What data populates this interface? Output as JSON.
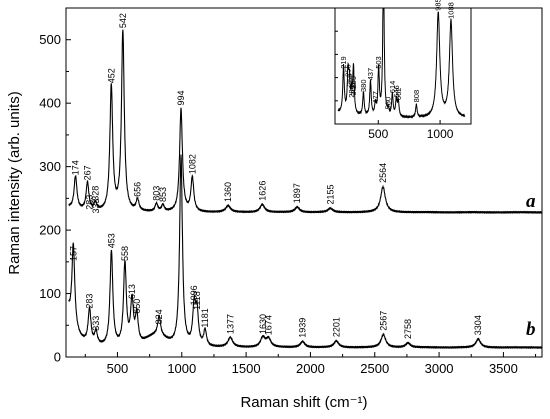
{
  "chart_data": {
    "type": "line",
    "xlabel": "Raman shift (cm⁻¹)",
    "ylabel": "Raman intensity (arb. units)",
    "xlim": [
      100,
      3800
    ],
    "ylim": [
      0,
      550
    ],
    "x_ticks": [
      500,
      1000,
      1500,
      2000,
      2500,
      3000,
      3500
    ],
    "y_ticks": [
      0,
      100,
      200,
      300,
      400,
      500
    ],
    "grid": false,
    "series": [
      {
        "name": "a",
        "baseline": 228,
        "peaks": [
          {
            "x": 174,
            "y": 280,
            "label": "174"
          },
          {
            "x": 267,
            "y": 272,
            "label": "267"
          },
          {
            "x": 328,
            "y": 240,
            "label": "328"
          },
          {
            "x": 452,
            "y": 425,
            "label": "452"
          },
          {
            "x": 542,
            "y": 512,
            "label": "542"
          },
          {
            "x": 656,
            "y": 246,
            "label": "656"
          },
          {
            "x": 803,
            "y": 240,
            "label": "803"
          },
          {
            "x": 853,
            "y": 238,
            "label": "853"
          },
          {
            "x": 994,
            "y": 390,
            "label": "994"
          },
          {
            "x": 1082,
            "y": 282,
            "label": "1082"
          },
          {
            "x": 1360,
            "y": 238,
            "label": "1360"
          },
          {
            "x": 1626,
            "y": 240,
            "label": "1626"
          },
          {
            "x": 1897,
            "y": 236,
            "label": "1897"
          },
          {
            "x": 2155,
            "y": 234,
            "label": "2155"
          },
          {
            "x": 2564,
            "y": 268,
            "label": "2564"
          }
        ]
      },
      {
        "name": "b",
        "baseline": 15,
        "peaks": [
          {
            "x": 157,
            "y": 145,
            "label": "157"
          },
          {
            "x": 283,
            "y": 70,
            "label": "283"
          },
          {
            "x": 333,
            "y": 35,
            "label": "333"
          },
          {
            "x": 453,
            "y": 165,
            "label": "453"
          },
          {
            "x": 558,
            "y": 145,
            "label": "558"
          },
          {
            "x": 613,
            "y": 85,
            "label": "613"
          },
          {
            "x": 650,
            "y": 62,
            "label": "650"
          },
          {
            "x": 824,
            "y": 45,
            "label": "824"
          },
          {
            "x": 994,
            "y": 315,
            "label": ""
          },
          {
            "x": 1096,
            "y": 75,
            "label": "1096"
          },
          {
            "x": 1118,
            "y": 68,
            "label": "1118"
          },
          {
            "x": 1181,
            "y": 40,
            "label": "1181"
          },
          {
            "x": 1377,
            "y": 30,
            "label": "1377"
          },
          {
            "x": 1630,
            "y": 30,
            "label": "1630"
          },
          {
            "x": 1674,
            "y": 28,
            "label": "1674"
          },
          {
            "x": 1939,
            "y": 24,
            "label": "1939"
          },
          {
            "x": 2201,
            "y": 25,
            "label": "2201"
          },
          {
            "x": 2567,
            "y": 35,
            "label": "2567"
          },
          {
            "x": 2758,
            "y": 22,
            "label": "2758"
          },
          {
            "x": 3304,
            "y": 28,
            "label": "3304"
          }
        ]
      }
    ],
    "annotations": [
      "283",
      "333"
    ],
    "inset": {
      "type": "line",
      "xlim": [
        150,
        1250
      ],
      "x_ticks": [
        500,
        1000
      ],
      "baseline": 0.05,
      "peaks": [
        {
          "x": 219,
          "y": 0.45,
          "label": "219"
        },
        {
          "x": 255,
          "y": 0.38,
          "label": "255"
        },
        {
          "x": 266,
          "y": 0.3,
          "label": "266"
        },
        {
          "x": 284,
          "y": 0.2,
          "label": "284"
        },
        {
          "x": 299,
          "y": 0.28,
          "label": "299"
        },
        {
          "x": 300,
          "y": 0.22,
          "label": "300"
        },
        {
          "x": 380,
          "y": 0.25,
          "label": "380"
        },
        {
          "x": 437,
          "y": 0.35,
          "label": "437"
        },
        {
          "x": 477,
          "y": 0.15,
          "label": "477"
        },
        {
          "x": 503,
          "y": 0.45,
          "label": "503"
        },
        {
          "x": 542,
          "y": 1.3,
          "label": ""
        },
        {
          "x": 580,
          "y": 0.1,
          "label": "580"
        },
        {
          "x": 614,
          "y": 0.24,
          "label": "614"
        },
        {
          "x": 646,
          "y": 0.2,
          "label": "646"
        },
        {
          "x": 662,
          "y": 0.18,
          "label": "662"
        },
        {
          "x": 808,
          "y": 0.16,
          "label": "808"
        },
        {
          "x": 985,
          "y": 0.95,
          "label": "985"
        },
        {
          "x": 1088,
          "y": 0.88,
          "label": "1088"
        }
      ]
    }
  }
}
